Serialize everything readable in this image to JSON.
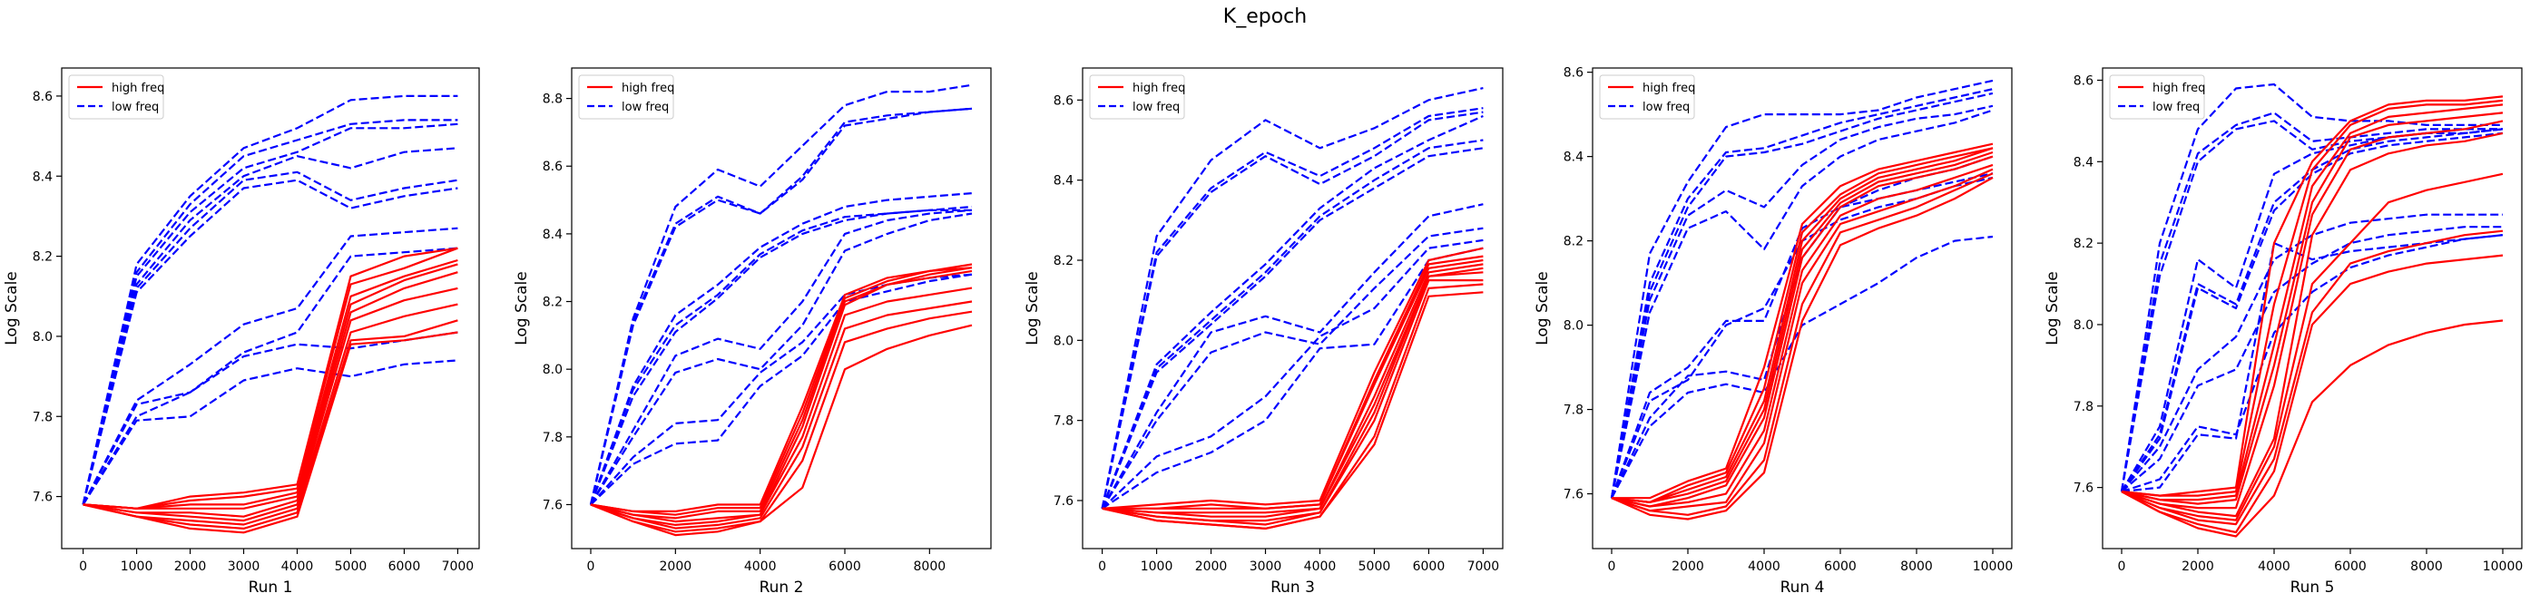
{
  "figure": {
    "title": "K_epoch"
  },
  "legend_labels": {
    "high": "high freq",
    "low": "low freq"
  },
  "colors": {
    "high": "#ff0000",
    "low": "#0000ff",
    "axes": "#000000"
  },
  "chart_data": [
    {
      "type": "line",
      "xlabel": "Run 1",
      "ylabel": "Log Scale",
      "xlim": [
        -400,
        7400
      ],
      "ylim": [
        7.47,
        8.67
      ],
      "xticks": [
        0,
        1000,
        2000,
        3000,
        4000,
        5000,
        6000,
        7000
      ],
      "yticks": [
        7.6,
        7.8,
        8.0,
        8.2,
        8.4,
        8.6
      ],
      "ytick_decimals": 1,
      "legend_position": "upper left",
      "grid": false,
      "x": [
        0,
        1000,
        2000,
        3000,
        4000,
        5000,
        6000,
        7000
      ],
      "high_freq": [
        [
          7.58,
          7.57,
          7.6,
          7.61,
          7.63,
          8.15,
          8.2,
          8.22
        ],
        [
          7.58,
          7.57,
          7.59,
          7.6,
          7.62,
          8.13,
          8.17,
          8.22
        ],
        [
          7.58,
          7.57,
          7.58,
          7.58,
          7.61,
          8.1,
          8.15,
          8.19
        ],
        [
          7.58,
          7.57,
          7.57,
          7.57,
          7.6,
          8.08,
          8.14,
          8.18
        ],
        [
          7.58,
          7.56,
          7.56,
          7.55,
          7.59,
          8.06,
          8.12,
          8.16
        ],
        [
          7.58,
          7.56,
          7.55,
          7.54,
          7.58,
          8.04,
          8.09,
          8.12
        ],
        [
          7.58,
          7.55,
          7.54,
          7.53,
          7.57,
          8.01,
          8.05,
          8.08
        ],
        [
          7.58,
          7.55,
          7.53,
          7.52,
          7.56,
          7.99,
          8.0,
          8.04
        ],
        [
          7.58,
          7.55,
          7.52,
          7.51,
          7.55,
          7.98,
          7.99,
          8.01
        ]
      ],
      "low_freq": [
        [
          7.58,
          8.18,
          8.35,
          8.47,
          8.52,
          8.59,
          8.6,
          8.6
        ],
        [
          7.58,
          8.16,
          8.33,
          8.45,
          8.49,
          8.53,
          8.54,
          8.54
        ],
        [
          7.58,
          8.15,
          8.31,
          8.42,
          8.46,
          8.52,
          8.52,
          8.53
        ],
        [
          7.58,
          8.13,
          8.29,
          8.4,
          8.45,
          8.42,
          8.46,
          8.47
        ],
        [
          7.58,
          8.12,
          8.27,
          8.39,
          8.41,
          8.34,
          8.37,
          8.39
        ],
        [
          7.58,
          8.11,
          8.25,
          8.37,
          8.39,
          8.32,
          8.35,
          8.37
        ],
        [
          7.58,
          7.84,
          7.93,
          8.03,
          8.07,
          8.25,
          8.26,
          8.27
        ],
        [
          7.58,
          7.83,
          7.86,
          7.96,
          8.01,
          8.2,
          8.21,
          8.22
        ],
        [
          7.58,
          7.8,
          7.86,
          7.95,
          7.98,
          7.97,
          7.99,
          8.01
        ],
        [
          7.58,
          7.79,
          7.8,
          7.89,
          7.92,
          7.9,
          7.93,
          7.94
        ]
      ]
    },
    {
      "type": "line",
      "xlabel": "Run 2",
      "ylabel": "Log Scale",
      "xlim": [
        -450,
        9450
      ],
      "ylim": [
        7.47,
        8.89
      ],
      "xticks": [
        0,
        2000,
        4000,
        6000,
        8000
      ],
      "yticks": [
        7.6,
        7.8,
        8.0,
        8.2,
        8.4,
        8.6,
        8.8
      ],
      "ytick_decimals": 1,
      "legend_position": "upper left",
      "grid": false,
      "x": [
        0,
        1000,
        2000,
        3000,
        4000,
        5000,
        6000,
        7000,
        8000,
        9000
      ],
      "high_freq": [
        [
          7.6,
          7.58,
          7.58,
          7.6,
          7.6,
          7.89,
          8.22,
          8.27,
          8.29,
          8.31
        ],
        [
          7.6,
          7.58,
          7.57,
          7.59,
          7.59,
          7.87,
          8.21,
          8.26,
          8.29,
          8.3
        ],
        [
          7.6,
          7.57,
          7.56,
          7.58,
          7.58,
          7.85,
          8.2,
          8.25,
          8.28,
          8.3
        ],
        [
          7.6,
          7.57,
          7.55,
          7.56,
          7.57,
          7.83,
          8.19,
          8.25,
          8.27,
          8.29
        ],
        [
          7.6,
          7.56,
          7.54,
          7.55,
          7.57,
          7.8,
          8.16,
          8.2,
          8.22,
          8.24
        ],
        [
          7.6,
          7.56,
          7.53,
          7.54,
          7.56,
          7.77,
          8.12,
          8.16,
          8.18,
          8.2
        ],
        [
          7.6,
          7.55,
          7.52,
          7.53,
          7.55,
          7.73,
          8.08,
          8.12,
          8.15,
          8.17
        ],
        [
          7.6,
          7.55,
          7.51,
          7.52,
          7.55,
          7.65,
          8.0,
          8.06,
          8.1,
          8.13
        ]
      ],
      "low_freq": [
        [
          7.6,
          8.15,
          8.48,
          8.59,
          8.54,
          8.66,
          8.78,
          8.82,
          8.82,
          8.84
        ],
        [
          7.6,
          8.14,
          8.43,
          8.51,
          8.46,
          8.57,
          8.73,
          8.75,
          8.76,
          8.77
        ],
        [
          7.6,
          8.13,
          8.42,
          8.5,
          8.46,
          8.56,
          8.72,
          8.74,
          8.76,
          8.77
        ],
        [
          7.6,
          7.95,
          8.16,
          8.25,
          8.36,
          8.43,
          8.48,
          8.5,
          8.51,
          8.52
        ],
        [
          7.6,
          7.94,
          8.13,
          8.22,
          8.34,
          8.41,
          8.45,
          8.46,
          8.47,
          8.48
        ],
        [
          7.6,
          7.92,
          8.11,
          8.21,
          8.33,
          8.4,
          8.44,
          8.46,
          8.47,
          8.47
        ],
        [
          7.6,
          7.82,
          8.04,
          8.09,
          8.06,
          8.2,
          8.4,
          8.44,
          8.46,
          8.47
        ],
        [
          7.6,
          7.8,
          7.99,
          8.03,
          8.0,
          8.13,
          8.35,
          8.4,
          8.44,
          8.46
        ],
        [
          7.6,
          7.74,
          7.84,
          7.85,
          7.99,
          8.08,
          8.22,
          8.25,
          8.27,
          8.28
        ],
        [
          7.6,
          7.72,
          7.78,
          7.79,
          7.95,
          8.04,
          8.2,
          8.23,
          8.26,
          8.28
        ]
      ]
    },
    {
      "type": "line",
      "xlabel": "Run 3",
      "ylabel": "Log Scale",
      "xlim": [
        -360,
        7360
      ],
      "ylim": [
        7.48,
        8.68
      ],
      "xticks": [
        0,
        1000,
        2000,
        3000,
        4000,
        5000,
        6000,
        7000
      ],
      "yticks": [
        7.6,
        7.8,
        8.0,
        8.2,
        8.4,
        8.6
      ],
      "ytick_decimals": 1,
      "legend_position": "upper left",
      "grid": false,
      "x": [
        0,
        1000,
        2000,
        3000,
        4000,
        5000,
        6000,
        7000
      ],
      "high_freq": [
        [
          7.58,
          7.59,
          7.6,
          7.59,
          7.6,
          7.92,
          8.2,
          8.23
        ],
        [
          7.58,
          7.58,
          7.59,
          7.58,
          7.59,
          7.9,
          8.19,
          8.21
        ],
        [
          7.58,
          7.58,
          7.58,
          7.58,
          7.59,
          7.89,
          8.18,
          8.2
        ],
        [
          7.58,
          7.57,
          7.57,
          7.57,
          7.58,
          7.86,
          8.17,
          8.19
        ],
        [
          7.58,
          7.57,
          7.56,
          7.56,
          7.58,
          7.84,
          8.16,
          8.18
        ],
        [
          7.58,
          7.56,
          7.55,
          7.55,
          7.57,
          7.82,
          8.16,
          8.17
        ],
        [
          7.58,
          7.56,
          7.55,
          7.54,
          7.57,
          7.8,
          8.15,
          8.15
        ],
        [
          7.58,
          7.55,
          7.54,
          7.53,
          7.56,
          7.76,
          8.13,
          8.14
        ],
        [
          7.58,
          7.55,
          7.54,
          7.53,
          7.56,
          7.74,
          8.11,
          8.12
        ]
      ],
      "low_freq": [
        [
          7.58,
          8.26,
          8.45,
          8.55,
          8.48,
          8.53,
          8.6,
          8.63
        ],
        [
          7.58,
          8.22,
          8.38,
          8.47,
          8.41,
          8.48,
          8.56,
          8.58
        ],
        [
          7.58,
          8.21,
          8.37,
          8.46,
          8.39,
          8.46,
          8.55,
          8.57
        ],
        [
          7.58,
          7.94,
          8.07,
          8.19,
          8.33,
          8.43,
          8.5,
          8.56
        ],
        [
          7.58,
          7.93,
          8.05,
          8.17,
          8.31,
          8.4,
          8.48,
          8.5
        ],
        [
          7.58,
          7.92,
          8.04,
          8.16,
          8.3,
          8.38,
          8.46,
          8.48
        ],
        [
          7.58,
          7.82,
          8.02,
          8.06,
          8.02,
          8.17,
          8.31,
          8.34
        ],
        [
          7.58,
          7.8,
          7.97,
          8.02,
          7.99,
          8.13,
          8.26,
          8.28
        ],
        [
          7.58,
          7.71,
          7.76,
          7.86,
          8.01,
          8.08,
          8.23,
          8.25
        ],
        [
          7.58,
          7.67,
          7.72,
          7.8,
          7.98,
          7.99,
          8.2,
          8.23
        ]
      ]
    },
    {
      "type": "line",
      "xlabel": "Run 4",
      "ylabel": "Log Scale",
      "xlim": [
        -500,
        10500
      ],
      "ylim": [
        7.47,
        8.61
      ],
      "xticks": [
        0,
        2000,
        4000,
        6000,
        8000,
        10000
      ],
      "yticks": [
        7.6,
        7.8,
        8.0,
        8.2,
        8.4,
        8.6
      ],
      "ytick_decimals": 1,
      "legend_position": "upper left",
      "grid": false,
      "x": [
        0,
        1000,
        2000,
        3000,
        4000,
        5000,
        6000,
        7000,
        8000,
        9000,
        10000
      ],
      "high_freq": [
        [
          7.59,
          7.59,
          7.63,
          7.66,
          7.9,
          8.24,
          8.33,
          8.37,
          8.39,
          8.41,
          8.43
        ],
        [
          7.59,
          7.58,
          7.62,
          7.65,
          7.85,
          8.22,
          8.31,
          8.36,
          8.38,
          8.4,
          8.42
        ],
        [
          7.59,
          7.58,
          7.61,
          7.64,
          7.82,
          8.2,
          8.3,
          8.35,
          8.37,
          8.39,
          8.42
        ],
        [
          7.59,
          7.58,
          7.6,
          7.63,
          7.8,
          8.18,
          8.29,
          8.34,
          8.36,
          8.38,
          8.41
        ],
        [
          7.59,
          7.57,
          7.59,
          7.62,
          7.78,
          8.16,
          8.28,
          8.33,
          8.35,
          8.37,
          8.4
        ],
        [
          7.59,
          7.57,
          7.58,
          7.6,
          7.75,
          8.13,
          8.26,
          8.3,
          8.32,
          8.35,
          8.38
        ],
        [
          7.59,
          7.56,
          7.57,
          7.58,
          7.72,
          8.1,
          8.24,
          8.27,
          8.3,
          8.33,
          8.37
        ],
        [
          7.59,
          7.56,
          7.55,
          7.57,
          7.68,
          8.05,
          8.22,
          8.25,
          8.28,
          8.32,
          8.36
        ],
        [
          7.59,
          7.55,
          7.54,
          7.56,
          7.65,
          8.01,
          8.19,
          8.23,
          8.26,
          8.3,
          8.35
        ]
      ],
      "low_freq": [
        [
          7.59,
          8.17,
          8.34,
          8.47,
          8.5,
          8.5,
          8.5,
          8.51,
          8.54,
          8.56,
          8.58
        ],
        [
          7.59,
          8.1,
          8.3,
          8.41,
          8.42,
          8.45,
          8.48,
          8.5,
          8.52,
          8.54,
          8.56
        ],
        [
          7.59,
          8.08,
          8.28,
          8.4,
          8.41,
          8.43,
          8.46,
          8.49,
          8.51,
          8.53,
          8.55
        ],
        [
          7.59,
          8.06,
          8.26,
          8.32,
          8.28,
          8.38,
          8.44,
          8.47,
          8.49,
          8.5,
          8.52
        ],
        [
          7.59,
          8.03,
          8.23,
          8.27,
          8.18,
          8.33,
          8.4,
          8.44,
          8.46,
          8.48,
          8.51
        ],
        [
          7.59,
          7.84,
          7.9,
          8.01,
          8.01,
          8.23,
          8.28,
          8.3,
          8.32,
          8.34,
          8.36
        ],
        [
          7.59,
          7.82,
          7.87,
          8.0,
          8.04,
          8.2,
          8.25,
          8.28,
          8.3,
          8.33,
          8.35
        ],
        [
          7.59,
          7.78,
          7.88,
          7.89,
          7.87,
          8.16,
          8.28,
          8.32,
          8.35,
          8.37,
          8.4
        ],
        [
          7.59,
          7.76,
          7.84,
          7.86,
          7.84,
          8.0,
          8.05,
          8.1,
          8.16,
          8.2,
          8.21
        ]
      ]
    },
    {
      "type": "line",
      "xlabel": "Run 5",
      "ylabel": "Log Scale",
      "xlim": [
        -500,
        10500
      ],
      "ylim": [
        7.45,
        8.63
      ],
      "xticks": [
        0,
        2000,
        4000,
        6000,
        8000,
        10000
      ],
      "yticks": [
        7.6,
        7.8,
        8.0,
        8.2,
        8.4,
        8.6
      ],
      "ytick_decimals": 1,
      "legend_position": "upper left",
      "grid": false,
      "x": [
        0,
        1000,
        2000,
        3000,
        4000,
        5000,
        6000,
        7000,
        8000,
        9000,
        10000
      ],
      "high_freq": [
        [
          7.59,
          7.58,
          7.59,
          7.6,
          8.2,
          8.4,
          8.5,
          8.54,
          8.55,
          8.55,
          8.56
        ],
        [
          7.59,
          7.58,
          7.58,
          7.59,
          8.05,
          8.38,
          8.49,
          8.53,
          8.54,
          8.54,
          8.55
        ],
        [
          7.59,
          7.57,
          7.57,
          7.58,
          7.95,
          8.34,
          8.47,
          8.51,
          8.52,
          8.53,
          8.54
        ],
        [
          7.59,
          7.57,
          7.56,
          7.57,
          7.9,
          8.3,
          8.46,
          8.49,
          8.5,
          8.51,
          8.52
        ],
        [
          7.59,
          7.56,
          7.55,
          7.55,
          7.85,
          8.27,
          8.43,
          8.46,
          8.47,
          8.48,
          8.5
        ],
        [
          7.59,
          7.56,
          7.54,
          7.53,
          7.72,
          8.22,
          8.38,
          8.42,
          8.44,
          8.45,
          8.47
        ],
        [
          7.59,
          7.55,
          7.53,
          7.52,
          7.7,
          8.1,
          8.2,
          8.3,
          8.33,
          8.35,
          8.37
        ],
        [
          7.59,
          7.55,
          7.52,
          7.51,
          7.67,
          8.03,
          8.15,
          8.18,
          8.2,
          8.22,
          8.23
        ],
        [
          7.59,
          7.54,
          7.51,
          7.49,
          7.64,
          8.0,
          8.1,
          8.13,
          8.15,
          8.16,
          8.17
        ],
        [
          7.59,
          7.54,
          7.5,
          7.48,
          7.58,
          7.81,
          7.9,
          7.95,
          7.98,
          8.0,
          8.01
        ]
      ],
      "low_freq": [
        [
          7.59,
          8.2,
          8.48,
          8.58,
          8.59,
          8.51,
          8.5,
          8.5,
          8.49,
          8.49,
          8.49
        ],
        [
          7.59,
          8.15,
          8.42,
          8.49,
          8.52,
          8.45,
          8.46,
          8.47,
          8.48,
          8.48,
          8.48
        ],
        [
          7.59,
          8.12,
          8.4,
          8.48,
          8.5,
          8.43,
          8.45,
          8.46,
          8.47,
          8.47,
          8.48
        ],
        [
          7.59,
          7.75,
          8.16,
          8.09,
          8.37,
          8.42,
          8.44,
          8.46,
          8.47,
          8.48,
          8.48
        ],
        [
          7.59,
          7.73,
          8.1,
          8.05,
          8.3,
          8.38,
          8.43,
          8.45,
          8.46,
          8.47,
          8.48
        ],
        [
          7.59,
          7.72,
          8.09,
          8.04,
          8.28,
          8.37,
          8.42,
          8.44,
          8.45,
          8.46,
          8.47
        ],
        [
          7.59,
          7.7,
          7.89,
          7.97,
          8.16,
          8.22,
          8.25,
          8.26,
          8.27,
          8.27,
          8.27
        ],
        [
          7.59,
          7.67,
          7.85,
          7.89,
          8.08,
          8.15,
          8.2,
          8.22,
          8.23,
          8.24,
          8.24
        ],
        [
          7.59,
          7.62,
          7.75,
          7.73,
          7.98,
          8.08,
          8.14,
          8.17,
          8.19,
          8.21,
          8.22
        ],
        [
          7.59,
          7.6,
          7.73,
          7.72,
          8.2,
          8.16,
          8.18,
          8.19,
          8.2,
          8.21,
          8.22
        ]
      ]
    }
  ]
}
